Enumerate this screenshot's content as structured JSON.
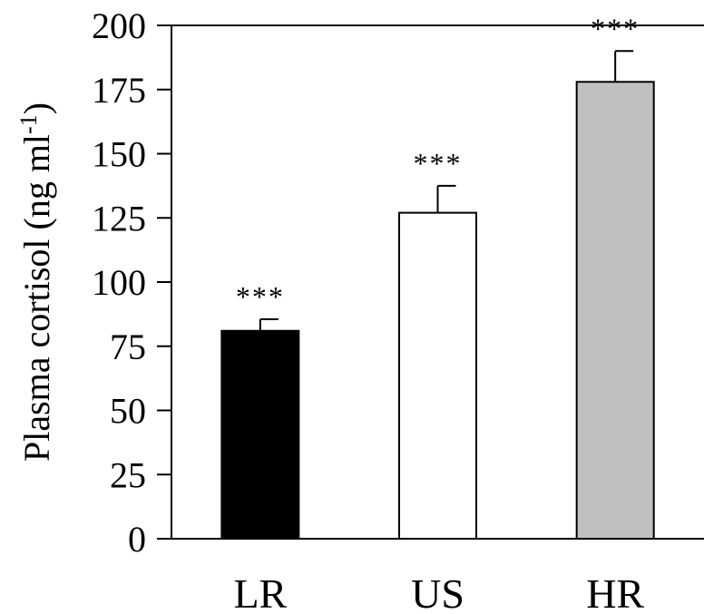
{
  "chart_data": {
    "type": "bar",
    "categories": [
      "LR",
      "US",
      "HR"
    ],
    "values": [
      81,
      127,
      178
    ],
    "errors": [
      4.5,
      10.5,
      12
    ],
    "bar_colors": [
      "#000000",
      "#ffffff",
      "#c0c0c0"
    ],
    "annotations": [
      "***",
      "***",
      "***"
    ],
    "ylabel": "Plasma cortisol (ng ml",
    "ylabel_superscript": "-1",
    "ylabel_suffix": ")",
    "ylim": [
      0,
      200
    ],
    "yticks": [
      0,
      25,
      50,
      75,
      100,
      125,
      150,
      175,
      200
    ],
    "grid": false
  }
}
